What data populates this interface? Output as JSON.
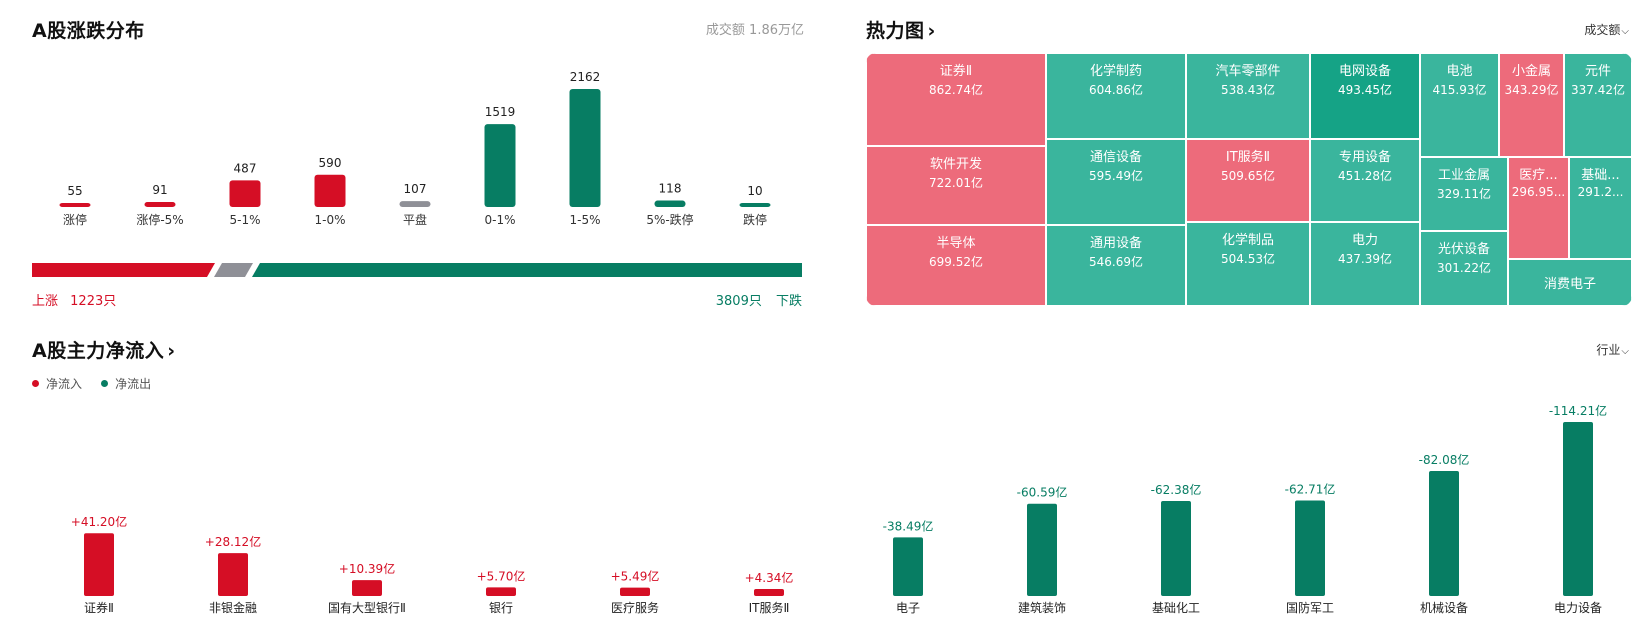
{
  "colors": {
    "up": "#d50e25",
    "down": "#077d63",
    "flat": "#8f9097",
    "hm_up": "#ed6b7b",
    "hm_down": "#3ab59d",
    "hm_down_dark": "#15a386"
  },
  "dist": {
    "title": "A股涨跌分布",
    "turnover": "成交额 1.86万亿",
    "up_label": "上涨",
    "up_count": "1223只",
    "down_label": "下跌",
    "down_count": "3809只"
  },
  "heatmap": {
    "title": "热力图",
    "dropdown": "成交额",
    "cells": [
      {
        "name": "证券Ⅱ",
        "value": "862.74亿",
        "color": "up"
      },
      {
        "name": "软件开发",
        "value": "722.01亿",
        "color": "up"
      },
      {
        "name": "半导体",
        "value": "699.52亿",
        "color": "up"
      },
      {
        "name": "化学制药",
        "value": "604.86亿",
        "color": "down"
      },
      {
        "name": "通信设备",
        "value": "595.49亿",
        "color": "down"
      },
      {
        "name": "通用设备",
        "value": "546.69亿",
        "color": "down"
      },
      {
        "name": "汽车零部件",
        "value": "538.43亿",
        "color": "down"
      },
      {
        "name": "IT服务Ⅱ",
        "value": "509.65亿",
        "color": "up"
      },
      {
        "name": "化学制品",
        "value": "504.53亿",
        "color": "down"
      },
      {
        "name": "电网设备",
        "value": "493.45亿",
        "color": "down_dark"
      },
      {
        "name": "专用设备",
        "value": "451.28亿",
        "color": "down"
      },
      {
        "name": "电力",
        "value": "437.39亿",
        "color": "down"
      },
      {
        "name": "电池",
        "value": "415.93亿",
        "color": "down"
      },
      {
        "name": "小金属",
        "value": "343.29亿",
        "color": "up"
      },
      {
        "name": "元件",
        "value": "337.42亿",
        "color": "down"
      },
      {
        "name": "工业金属",
        "value": "329.11亿",
        "color": "down"
      },
      {
        "name": "医疗...",
        "value": "296.95...",
        "color": "up"
      },
      {
        "name": "基础...",
        "value": "291.2...",
        "color": "down"
      },
      {
        "name": "光伏设备",
        "value": "301.22亿",
        "color": "down"
      },
      {
        "name": "消费电子",
        "value": "",
        "color": "down"
      }
    ]
  },
  "flow": {
    "title": "A股主力净流入",
    "dropdown": "行业",
    "legend_in": "净流入",
    "legend_out": "净流出"
  },
  "chart_data": [
    {
      "type": "bar",
      "title": "A股涨跌分布",
      "categories": [
        "涨停",
        "涨停-5%",
        "5-1%",
        "1-0%",
        "平盘",
        "0-1%",
        "1-5%",
        "5%-跌停",
        "跌停"
      ],
      "values": [
        55,
        91,
        487,
        590,
        107,
        1519,
        2162,
        118,
        10
      ],
      "colors": [
        "up",
        "up",
        "up",
        "up",
        "flat",
        "down",
        "down",
        "down",
        "down"
      ]
    },
    {
      "type": "bar",
      "title": "A股主力净流入",
      "categories": [
        "证券Ⅱ",
        "非银金融",
        "国有大型银行Ⅱ",
        "银行",
        "医疗服务",
        "IT服务Ⅱ",
        "电子",
        "建筑装饰",
        "基础化工",
        "国防军工",
        "机械设备",
        "电力设备"
      ],
      "values": [
        41.2,
        28.12,
        10.39,
        5.7,
        5.49,
        4.34,
        -38.49,
        -60.59,
        -62.38,
        -62.71,
        -82.08,
        -114.21
      ],
      "labels": [
        "+41.20亿",
        "+28.12亿",
        "+10.39亿",
        "+5.70亿",
        "+5.49亿",
        "+4.34亿",
        "-38.49亿",
        "-60.59亿",
        "-62.38亿",
        "-62.71亿",
        "-82.08亿",
        "-114.21亿"
      ]
    }
  ]
}
